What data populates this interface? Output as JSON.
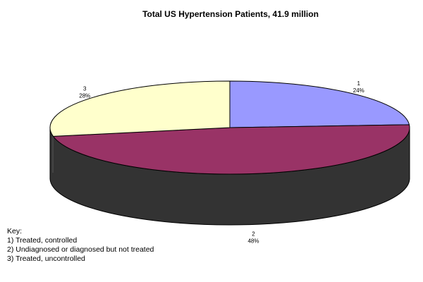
{
  "chart_data": {
    "type": "pie",
    "title": "Total US Hypertension Patients, 41.9 million",
    "slices": [
      {
        "label": "1",
        "percent_label": "24%",
        "value": 24,
        "color": "#9999ff"
      },
      {
        "label": "2",
        "percent_label": "48%",
        "value": 48,
        "color": "#993366"
      },
      {
        "label": "3",
        "percent_label": "28%",
        "value": 28,
        "color": "#ffffcc"
      }
    ],
    "side_color": "#333333",
    "legend": {
      "heading": "Key:",
      "entries": [
        "1) Treated, controlled",
        "2) Undiagnosed or diagnosed but not treated",
        "3) Treated, uncontrolled"
      ]
    }
  }
}
